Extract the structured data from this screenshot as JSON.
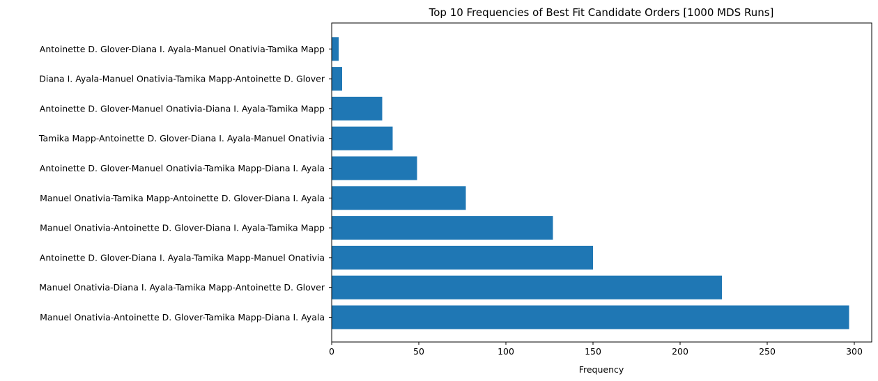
{
  "chart_data": {
    "type": "bar",
    "orientation": "horizontal",
    "title": "Top 10 Frequencies of Best Fit Candidate Orders [1000 MDS Runs]",
    "xlabel": "Frequency",
    "ylabel": "",
    "xlim": [
      0,
      310
    ],
    "xticks": [
      0,
      50,
      100,
      150,
      200,
      250,
      300
    ],
    "grid": false,
    "bar_color": "#1f77b4",
    "categories": [
      "Manuel Onativia-Antoinette D. Glover-Tamika Mapp-Diana I. Ayala",
      "Manuel Onativia-Diana I. Ayala-Tamika Mapp-Antoinette D. Glover",
      "Antoinette D. Glover-Diana I. Ayala-Tamika Mapp-Manuel Onativia",
      "Manuel Onativia-Antoinette D. Glover-Diana I. Ayala-Tamika Mapp",
      "Manuel Onativia-Tamika Mapp-Antoinette D. Glover-Diana I. Ayala",
      "Antoinette D. Glover-Manuel Onativia-Tamika Mapp-Diana I. Ayala",
      "Tamika Mapp-Antoinette D. Glover-Diana I. Ayala-Manuel Onativia",
      "Antoinette D. Glover-Manuel Onativia-Diana I. Ayala-Tamika Mapp",
      "Diana I. Ayala-Manuel Onativia-Tamika Mapp-Antoinette D. Glover",
      "Antoinette D. Glover-Diana I. Ayala-Manuel Onativia-Tamika Mapp"
    ],
    "values": [
      297,
      224,
      150,
      127,
      77,
      49,
      35,
      29,
      6,
      4
    ]
  }
}
